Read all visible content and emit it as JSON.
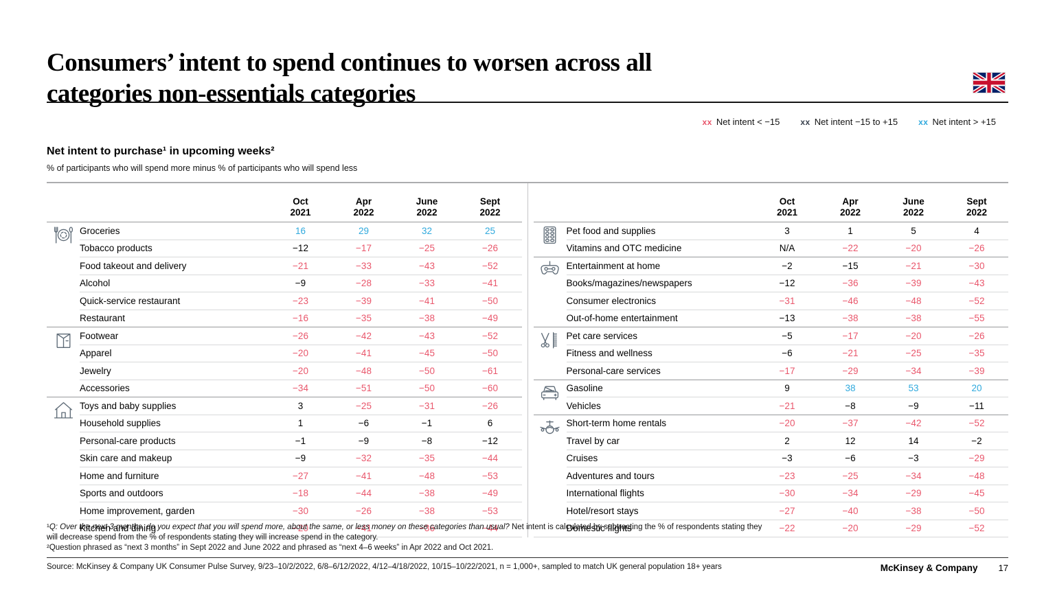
{
  "page": {
    "title_line1": "Consumers’ intent to spend continues to worsen across all",
    "title_line2": "categories non-essentials categories",
    "footer_brand": "McKinsey & Company",
    "page_number": "17"
  },
  "colors": {
    "negative": "#e9566b",
    "neutral": "#000000",
    "positive": "#2fa9dd"
  },
  "legend": {
    "items": [
      {
        "symbol": "xx",
        "label": "Net intent < −15",
        "color": "#e9566b"
      },
      {
        "symbol": "xx",
        "label": "Net intent −15 to +15",
        "color": "#39414d"
      },
      {
        "symbol": "xx",
        "label": "Net intent > +15",
        "color": "#2fa9dd"
      }
    ]
  },
  "exhibit": {
    "heading": "Net intent to purchase¹ in upcoming weeks²",
    "subheading": "% of participants who will spend more minus % of participants who will spend less"
  },
  "columns": [
    "Oct 2021",
    "Apr 2022",
    "June 2022",
    "Sept 2022"
  ],
  "thresholds": {
    "red_below": -15,
    "blue_above": 15
  },
  "tables": [
    {
      "groups": [
        {
          "icon": "dining",
          "rows": [
            {
              "label": "Groceries",
              "values": [
                16,
                29,
                32,
                25
              ]
            },
            {
              "label": "Tobacco products",
              "values": [
                -12,
                -17,
                -25,
                -26
              ]
            },
            {
              "label": "Food takeout and delivery",
              "values": [
                -21,
                -33,
                -43,
                -52
              ]
            },
            {
              "label": "Alcohol",
              "values": [
                -9,
                -28,
                -33,
                -41
              ]
            },
            {
              "label": "Quick-service restaurant",
              "values": [
                -23,
                -39,
                -41,
                -50
              ]
            },
            {
              "label": "Restaurant",
              "values": [
                -16,
                -35,
                -38,
                -49
              ]
            }
          ]
        },
        {
          "icon": "apparel",
          "rows": [
            {
              "label": "Footwear",
              "values": [
                -26,
                -42,
                -43,
                -52
              ]
            },
            {
              "label": "Apparel",
              "values": [
                -20,
                -41,
                -45,
                -50
              ]
            },
            {
              "label": "Jewelry",
              "values": [
                -20,
                -48,
                -50,
                -61
              ]
            },
            {
              "label": "Accessories",
              "values": [
                -34,
                -51,
                -50,
                -60
              ]
            }
          ]
        },
        {
          "icon": "home",
          "rows": [
            {
              "label": "Toys and baby supplies",
              "values": [
                3,
                -25,
                -31,
                -26
              ]
            },
            {
              "label": "Household supplies",
              "values": [
                1,
                -6,
                -1,
                6
              ]
            },
            {
              "label": "Personal-care products",
              "values": [
                -1,
                -9,
                -8,
                -12
              ]
            },
            {
              "label": "Skin care and makeup",
              "values": [
                -9,
                -32,
                -35,
                -44
              ]
            },
            {
              "label": "Home and furniture",
              "values": [
                -27,
                -41,
                -48,
                -53
              ]
            },
            {
              "label": "Sports and outdoors",
              "values": [
                -18,
                -44,
                -38,
                -49
              ]
            },
            {
              "label": "Home improvement, garden",
              "values": [
                -30,
                -26,
                -38,
                -53
              ]
            },
            {
              "label": "Kitchen and dining",
              "values": [
                -20,
                -41,
                -36,
                -44
              ]
            }
          ]
        }
      ]
    },
    {
      "groups": [
        {
          "icon": "pills",
          "rows": [
            {
              "label": "Pet food and supplies",
              "values": [
                3,
                1,
                5,
                4
              ]
            },
            {
              "label": "Vitamins and OTC medicine",
              "values": [
                "N/A",
                -22,
                -20,
                -26
              ]
            }
          ]
        },
        {
          "icon": "game-controller",
          "rows": [
            {
              "label": "Entertainment at home",
              "values": [
                -2,
                -15,
                -21,
                -30
              ]
            },
            {
              "label": "Books/magazines/newspapers",
              "values": [
                -12,
                -36,
                -39,
                -43
              ]
            },
            {
              "label": "Consumer electronics",
              "values": [
                -31,
                -46,
                -48,
                -52
              ]
            },
            {
              "label": "Out-of-home entertainment",
              "values": [
                -13,
                -38,
                -38,
                -55
              ]
            }
          ]
        },
        {
          "icon": "grooming",
          "rows": [
            {
              "label": "Pet care services",
              "values": [
                -5,
                -17,
                -20,
                -26
              ]
            },
            {
              "label": "Fitness and wellness",
              "values": [
                -6,
                -21,
                -25,
                -35
              ]
            },
            {
              "label": "Personal-care services",
              "values": [
                -17,
                -29,
                -34,
                -39
              ]
            }
          ]
        },
        {
          "icon": "car",
          "rows": [
            {
              "label": "Gasoline",
              "values": [
                9,
                38,
                53,
                20
              ]
            },
            {
              "label": "Vehicles",
              "values": [
                -21,
                -8,
                -9,
                -11
              ]
            }
          ]
        },
        {
          "icon": "airplane",
          "rows": [
            {
              "label": "Short-term home rentals",
              "values": [
                -20,
                -37,
                -42,
                -52
              ]
            },
            {
              "label": "Travel by car",
              "values": [
                2,
                12,
                14,
                -2
              ]
            },
            {
              "label": "Cruises",
              "values": [
                -3,
                -6,
                -3,
                -29
              ]
            },
            {
              "label": "Adventures and tours",
              "values": [
                -23,
                -25,
                -34,
                -48
              ]
            },
            {
              "label": "International flights",
              "values": [
                -30,
                -34,
                -29,
                -45
              ]
            },
            {
              "label": "Hotel/resort stays",
              "values": [
                -27,
                -40,
                -38,
                -50
              ]
            },
            {
              "label": "Domestic flights",
              "values": [
                -22,
                -20,
                -29,
                -52
              ]
            }
          ]
        }
      ]
    }
  ],
  "footnotes": {
    "fn1_prefix": "¹",
    "fn1_italic": "Q: Over the next 3 months, do you expect that you will spend more, about the same, or less money on these categories than usual?",
    "fn1_rest": " Net intent is calculated by subtracting the % of respondents stating they will decrease spend from the % of respondents stating they will increase spend in the category.",
    "fn2": "²Question phrased as “next 3 months” in Sept 2022 and June 2022 and phrased as “next 4–6 weeks” in Apr 2022 and Oct 2021."
  },
  "source": "Source: McKinsey & Company UK Consumer Pulse Survey, 9/23–10/2/2022, 6/8–6/12/2022, 4/12–4/18/2022, 10/15–10/22/2021, n = 1,000+, sampled to match UK general population 18+ years"
}
